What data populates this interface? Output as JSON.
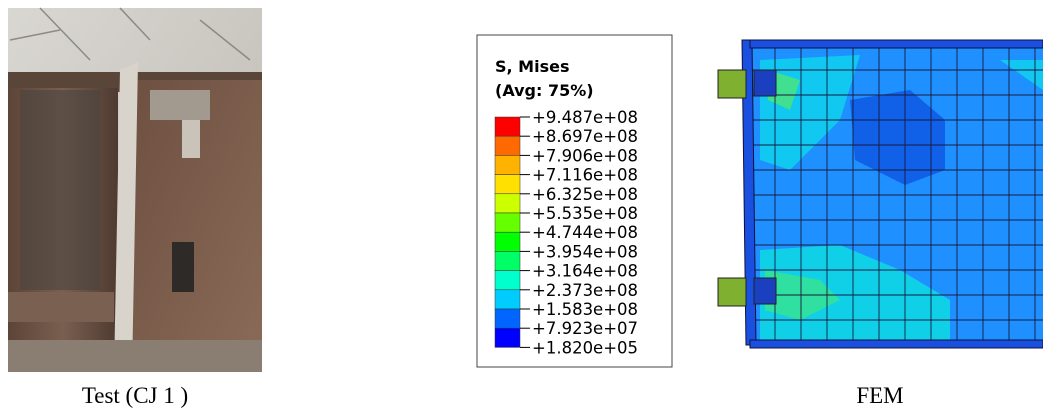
{
  "figure": {
    "left_caption": "Test (CJ 1 )",
    "right_caption": "FEM",
    "legend": {
      "title": "S, Mises",
      "subtitle": "(Avg: 75%)",
      "labels": [
        "+9.487e+08",
        "+8.697e+08",
        "+7.906e+08",
        "+7.116e+08",
        "+6.325e+08",
        "+5.535e+08",
        "+4.744e+08",
        "+3.954e+08",
        "+3.164e+08",
        "+2.373e+08",
        "+1.583e+08",
        "+7.923e+07",
        "+1.820e+05"
      ]
    }
  }
}
